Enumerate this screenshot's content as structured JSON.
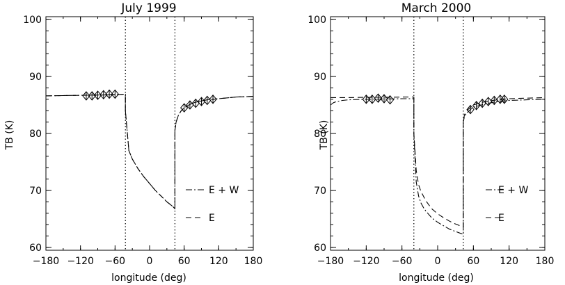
{
  "chart_data": [
    {
      "type": "line",
      "title": "July 1999",
      "xlabel": "longitude (deg)",
      "ylabel": "TB (K)",
      "xlim": [
        -180,
        180
      ],
      "ylim": [
        59.5,
        100.5
      ],
      "xticks": [
        "−180",
        "−120",
        "−60",
        "0",
        "60",
        "120",
        "180"
      ],
      "yticks": [
        "60",
        "70",
        "80",
        "90",
        "100"
      ],
      "vlines": [
        -42,
        44
      ],
      "legend": [
        {
          "label": "E + W",
          "style": "dash-dot"
        },
        {
          "label": "E",
          "style": "dash"
        }
      ],
      "series": [
        {
          "name": "E + W",
          "style": "dash-dot",
          "x": [
            -180,
            -150,
            -120,
            -90,
            -60,
            -42,
            -42,
            -36,
            -30,
            -20,
            -10,
            0,
            10,
            20,
            30,
            40,
            44,
            44,
            46,
            50,
            55,
            60,
            70,
            80,
            100,
            120,
            150,
            180
          ],
          "y": [
            86.6,
            86.65,
            86.7,
            86.75,
            86.8,
            86.9,
            84.0,
            77.0,
            75.5,
            73.8,
            72.4,
            71.2,
            70.0,
            69.0,
            68.0,
            67.2,
            66.8,
            80.5,
            82.0,
            83.2,
            84.0,
            84.5,
            85.1,
            85.5,
            85.9,
            86.1,
            86.4,
            86.5
          ]
        },
        {
          "name": "E",
          "style": "dash",
          "x": [
            -180,
            -150,
            -120,
            -90,
            -60,
            -42,
            -42,
            -36,
            -30,
            -20,
            -10,
            0,
            10,
            20,
            30,
            40,
            44,
            44,
            46,
            50,
            55,
            60,
            70,
            80,
            100,
            120,
            150,
            180
          ],
          "y": [
            86.6,
            86.65,
            86.7,
            86.75,
            86.8,
            86.9,
            84.0,
            77.0,
            75.5,
            73.8,
            72.4,
            71.2,
            70.0,
            69.0,
            68.0,
            67.2,
            66.8,
            80.5,
            82.0,
            83.2,
            84.0,
            84.5,
            85.1,
            85.5,
            85.9,
            86.1,
            86.4,
            86.5
          ]
        }
      ],
      "observations": {
        "x": [
          -110,
          -100,
          -90,
          -80,
          -70,
          -60,
          60,
          70,
          80,
          90,
          100,
          110
        ],
        "y": [
          86.6,
          86.6,
          86.7,
          86.8,
          86.9,
          86.9,
          84.5,
          85.0,
          85.3,
          85.6,
          85.8,
          86.0
        ]
      }
    },
    {
      "type": "line",
      "title": "March 2000",
      "xlabel": "longitude (deg)",
      "ylabel": "TB (K)",
      "xlim": [
        -180,
        180
      ],
      "ylim": [
        59.5,
        100.5
      ],
      "xticks": [
        "−180",
        "−120",
        "−60",
        "0",
        "60",
        "120",
        "180"
      ],
      "yticks": [
        "60",
        "70",
        "80",
        "90",
        "100"
      ],
      "vlines": [
        -40,
        43
      ],
      "legend": [
        {
          "label": "E + W",
          "style": "dash-dot"
        },
        {
          "label": "E",
          "style": "dash"
        }
      ],
      "series": [
        {
          "name": "E + W",
          "style": "dash-dot",
          "x": [
            -180,
            -175,
            -170,
            -160,
            -150,
            -120,
            -90,
            -60,
            -40,
            -40,
            -36,
            -32,
            -28,
            -24,
            -20,
            -10,
            0,
            10,
            20,
            30,
            40,
            43,
            43,
            45,
            50,
            55,
            60,
            80,
            100,
            120,
            150,
            180
          ],
          "y": [
            85.0,
            85.4,
            85.6,
            85.8,
            85.9,
            86.0,
            86.05,
            86.1,
            86.1,
            80.0,
            71.5,
            69.0,
            67.8,
            67.0,
            66.4,
            65.2,
            64.4,
            63.8,
            63.2,
            62.8,
            62.4,
            62.3,
            82.0,
            83.0,
            83.7,
            84.2,
            84.6,
            85.2,
            85.6,
            85.8,
            85.9,
            86.0
          ]
        },
        {
          "name": "E",
          "style": "dash",
          "x": [
            -180,
            -150,
            -120,
            -90,
            -60,
            -40,
            -40,
            -36,
            -32,
            -28,
            -24,
            -20,
            -10,
            0,
            10,
            20,
            30,
            40,
            43,
            43,
            45,
            50,
            55,
            60,
            80,
            100,
            120,
            150,
            180
          ],
          "y": [
            86.3,
            86.3,
            86.35,
            86.35,
            86.4,
            86.4,
            80.0,
            73.5,
            71.0,
            69.8,
            69.0,
            68.2,
            66.8,
            65.9,
            65.2,
            64.6,
            64.1,
            63.7,
            63.6,
            82.0,
            83.3,
            84.1,
            84.6,
            85.0,
            85.6,
            85.9,
            86.1,
            86.2,
            86.3
          ]
        }
      ],
      "observations": {
        "x": [
          -120,
          -110,
          -100,
          -90,
          -80,
          55,
          65,
          75,
          85,
          95,
          105,
          112
        ],
        "y": [
          86.0,
          86.0,
          86.2,
          86.1,
          85.9,
          84.2,
          84.9,
          85.3,
          85.6,
          85.8,
          86.0,
          86.0
        ]
      }
    }
  ]
}
